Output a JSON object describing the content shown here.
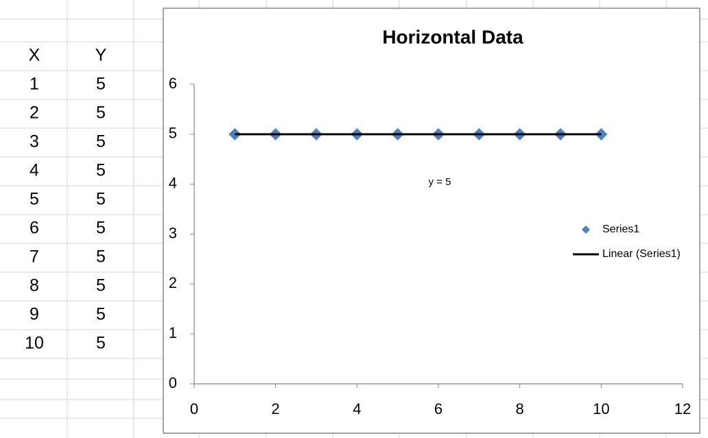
{
  "table": {
    "header": [
      "X",
      "Y"
    ],
    "rows": [
      [
        1,
        5
      ],
      [
        2,
        5
      ],
      [
        3,
        5
      ],
      [
        4,
        5
      ],
      [
        5,
        5
      ],
      [
        6,
        5
      ],
      [
        7,
        5
      ],
      [
        8,
        5
      ],
      [
        9,
        5
      ],
      [
        10,
        5
      ]
    ]
  },
  "chart_data": {
    "type": "scatter",
    "title": "Horizontal Data",
    "x": [
      1,
      2,
      3,
      4,
      5,
      6,
      7,
      8,
      9,
      10
    ],
    "series": [
      {
        "name": "Series1",
        "color": "#4f81bd",
        "values": [
          5,
          5,
          5,
          5,
          5,
          5,
          5,
          5,
          5,
          5
        ]
      }
    ],
    "trendline": {
      "name": "Linear (Series1)",
      "color": "#000000",
      "x": [
        1,
        10
      ],
      "values": [
        5,
        5
      ],
      "equation": "y = 5"
    },
    "xlim": [
      0,
      12
    ],
    "xticks": [
      0,
      2,
      4,
      6,
      8,
      10,
      12
    ],
    "ylim": [
      0,
      6
    ],
    "yticks": [
      0,
      1,
      2,
      3,
      4,
      5,
      6
    ],
    "legend": "right"
  }
}
